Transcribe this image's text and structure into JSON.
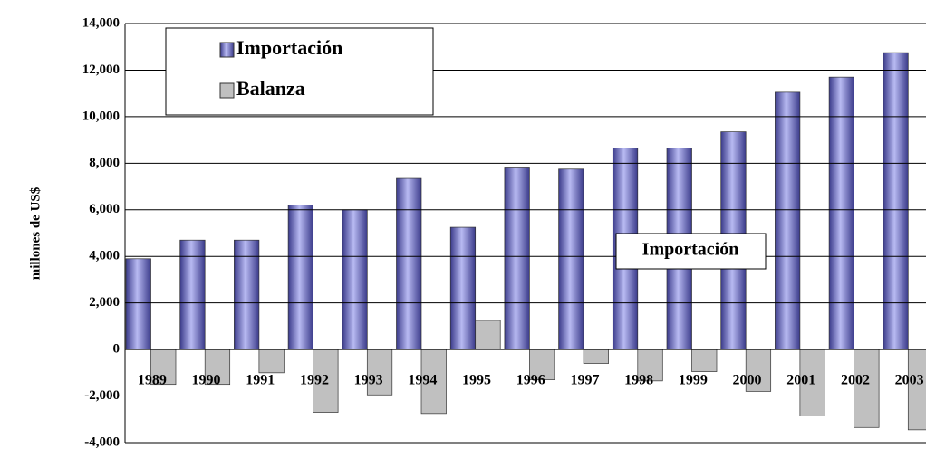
{
  "chart_data": {
    "type": "bar",
    "y_label": "millones de US$",
    "categories": [
      "1989",
      "1990",
      "1991",
      "1992",
      "1993",
      "1994",
      "1995",
      "1996",
      "1997",
      "1998",
      "1999",
      "2000",
      "2001",
      "2002",
      "2003"
    ],
    "series": [
      {
        "name": "Importación",
        "color": "#8084d8",
        "values": [
          3900,
          4700,
          4700,
          6200,
          6000,
          7350,
          5250,
          7800,
          7750,
          8650,
          8650,
          9350,
          11050,
          11700,
          12750
        ]
      },
      {
        "name": "Balanza",
        "color": "#c0c0c0",
        "values": [
          -1500,
          -1500,
          -1000,
          -2700,
          -1950,
          -2750,
          1250,
          -1300,
          -600,
          -1350,
          -950,
          -1800,
          -2850,
          -3350,
          -3450
        ]
      }
    ],
    "ylim": [
      -4000,
      14000
    ],
    "yticks": [
      {
        "value": -4000,
        "label": "-4,000"
      },
      {
        "value": -2000,
        "label": "-2,000"
      },
      0,
      {
        "value": 2000,
        "label": "2,000"
      },
      {
        "value": 4000,
        "label": "4,000"
      },
      {
        "value": 6000,
        "label": "6,000"
      },
      {
        "value": 8000,
        "label": "8,000"
      },
      {
        "value": 10000,
        "label": "10,000"
      },
      {
        "value": 12000,
        "label": "12,000"
      },
      {
        "value": 14000,
        "label": "14,000"
      }
    ],
    "grid": true,
    "annotation": "Importación"
  }
}
